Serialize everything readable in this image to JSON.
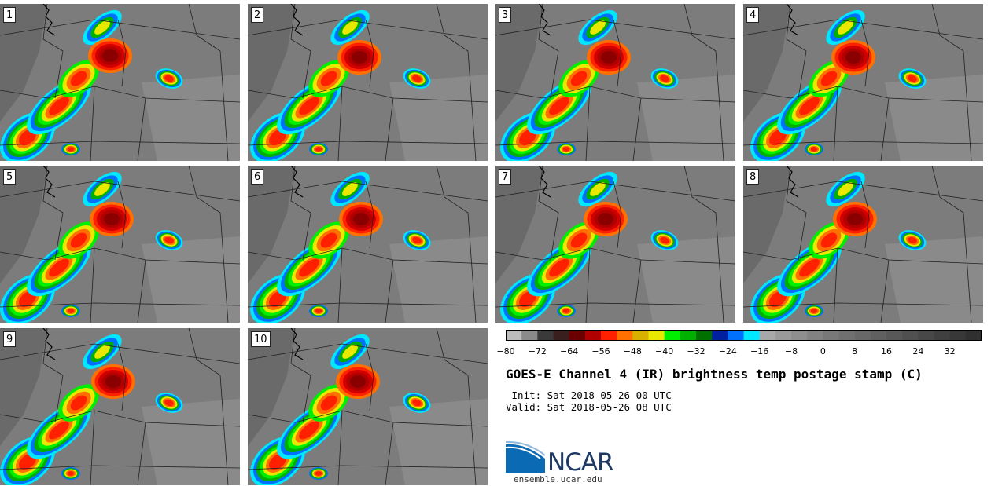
{
  "panels": [
    {
      "label": "1"
    },
    {
      "label": "2"
    },
    {
      "label": "3"
    },
    {
      "label": "4"
    },
    {
      "label": "5"
    },
    {
      "label": "6"
    },
    {
      "label": "7"
    },
    {
      "label": "8"
    },
    {
      "label": "9"
    },
    {
      "label": "10"
    }
  ],
  "colorbar": {
    "colors": [
      "#bdbdbd",
      "#8a8a8a",
      "#3a3a3a",
      "#3a1f1f",
      "#6b0000",
      "#b00000",
      "#ff2000",
      "#ff7000",
      "#d8b000",
      "#e8e800",
      "#00ee00",
      "#00b000",
      "#007000",
      "#0020a0",
      "#0070ff",
      "#00e8ff",
      "#a8a8a8",
      "#9a9a9a",
      "#8e8e8e",
      "#828282",
      "#787878",
      "#707070",
      "#686868",
      "#606060",
      "#585858",
      "#505050",
      "#484848",
      "#404040",
      "#383838",
      "#303030"
    ],
    "tick_labels": [
      "−80",
      "−72",
      "−64",
      "−56",
      "−48",
      "−40",
      "−32",
      "−24",
      "−16",
      "−8",
      "0",
      "8",
      "16",
      "24",
      "32"
    ]
  },
  "title": "GOES-E Channel 4 (IR) brightness temp postage stamp (C)",
  "init_line": " Init: Sat 2018-05-26 00 UTC",
  "valid_line": "Valid: Sat 2018-05-26 08 UTC",
  "logo": {
    "text": "NCAR",
    "url": "ensemble.ucar.edu",
    "color": "#0a6ab4"
  }
}
